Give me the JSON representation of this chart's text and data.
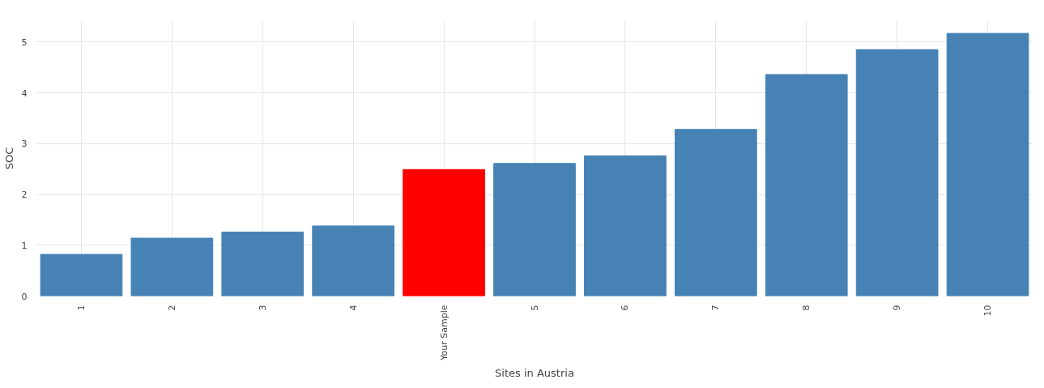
{
  "chart_data": {
    "type": "bar",
    "xlabel": "Sites in Austria",
    "ylabel": "SOC",
    "categories": [
      "1",
      "2",
      "3",
      "4",
      "Your Sample",
      "5",
      "6",
      "7",
      "8",
      "9",
      "10"
    ],
    "values": [
      0.82,
      1.14,
      1.26,
      1.38,
      2.49,
      2.61,
      2.76,
      3.28,
      4.36,
      4.85,
      5.17
    ],
    "colors": [
      "#4682b4",
      "#4682b4",
      "#4682b4",
      "#4682b4",
      "#ff0000",
      "#4682b4",
      "#4682b4",
      "#4682b4",
      "#4682b4",
      "#4682b4",
      "#4682b4"
    ],
    "ylim": [
      0,
      5.42
    ],
    "yticks": [
      0,
      1,
      2,
      3,
      4,
      5
    ],
    "grid": true
  }
}
